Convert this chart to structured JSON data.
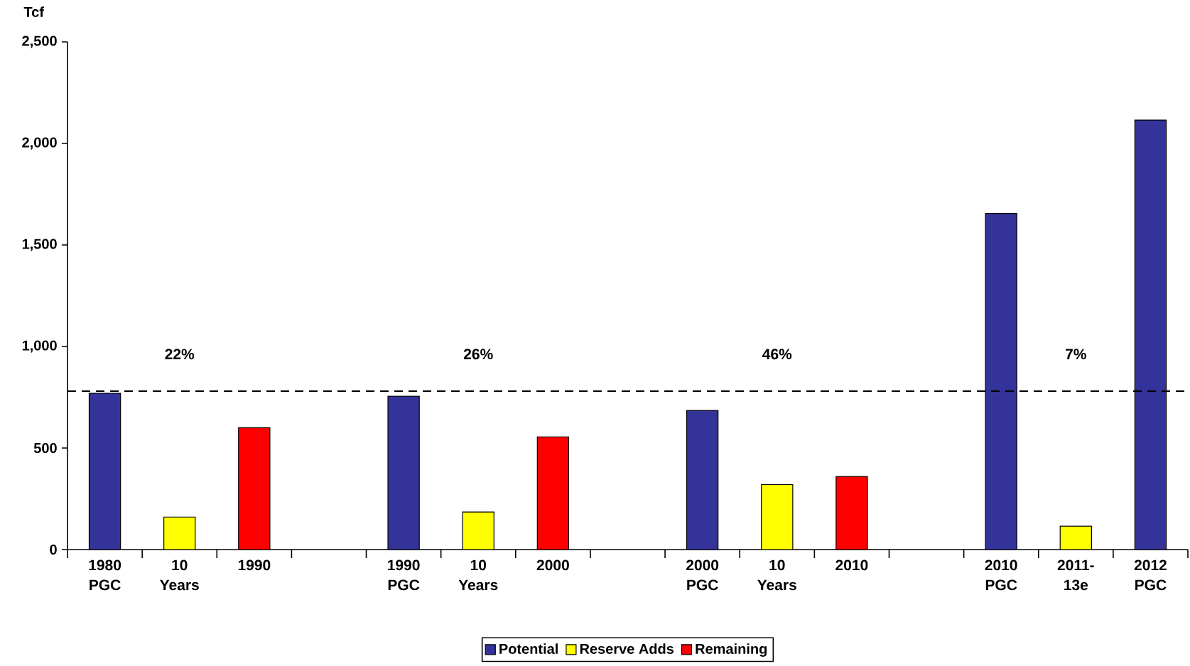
{
  "chart_data": {
    "type": "bar",
    "ylabel": "Tcf",
    "categories": [
      "1980 PGC",
      "10 Years",
      "1990",
      null,
      "1990 PGC",
      "10 Years",
      "2000",
      null,
      "2000 PGC",
      "10 Years",
      "2010",
      null,
      "2010 PGC",
      "2011-13e",
      "2012 PGC"
    ],
    "series": [
      {
        "name": "Potential",
        "color": "#333399",
        "values": [
          770,
          null,
          null,
          null,
          755,
          null,
          null,
          null,
          685,
          null,
          null,
          null,
          1655,
          null,
          2115
        ]
      },
      {
        "name": "Reserve Adds",
        "color": "#ffff00",
        "values": [
          null,
          160,
          null,
          null,
          null,
          185,
          null,
          null,
          null,
          320,
          null,
          null,
          null,
          115,
          null
        ]
      },
      {
        "name": "Remaining",
        "color": "#ff0000",
        "values": [
          null,
          null,
          600,
          null,
          null,
          null,
          555,
          null,
          null,
          null,
          360,
          null,
          null,
          null,
          null
        ]
      }
    ],
    "ylim": [
      0,
      2500
    ],
    "yticks": [
      {
        "value": 0,
        "label": "0"
      },
      {
        "value": 500,
        "label": "500"
      },
      {
        "value": 1000,
        "label": "1,000"
      },
      {
        "value": 1500,
        "label": "1,500"
      },
      {
        "value": 2000,
        "label": "2,000"
      },
      {
        "value": 2500,
        "label": "2,500"
      }
    ],
    "ref_lines": [
      {
        "axis": "y",
        "value": 780,
        "line_style": "dashed",
        "color": "#000000"
      }
    ],
    "annotations": [
      "22%",
      "26%",
      "46%",
      "7%"
    ],
    "legend": "bottom",
    "grid": false
  }
}
